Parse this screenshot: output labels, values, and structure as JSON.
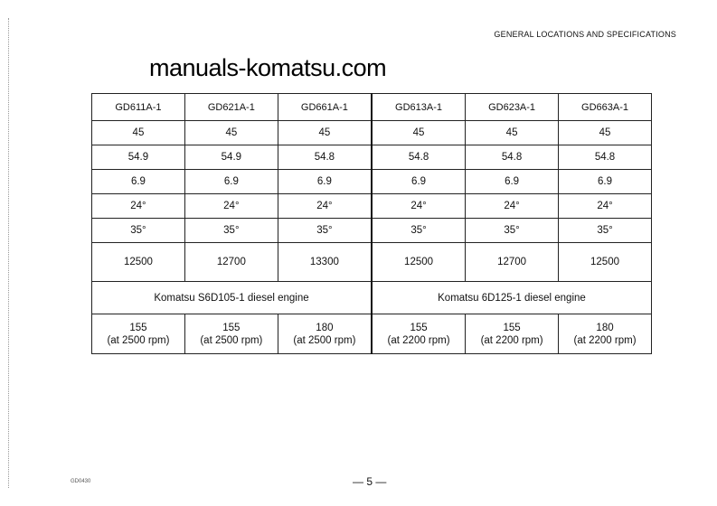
{
  "header": "GENERAL LOCATIONS AND SPECIFICATIONS",
  "watermark": "manuals-komatsu.com",
  "table": {
    "models": [
      "GD611A-1",
      "GD621A-1",
      "GD661A-1",
      "GD613A-1",
      "GD623A-1",
      "GD663A-1"
    ],
    "rows": [
      [
        "45",
        "45",
        "45",
        "45",
        "45",
        "45"
      ],
      [
        "54.9",
        "54.9",
        "54.8",
        "54.8",
        "54.8",
        "54.8"
      ],
      [
        "6.9",
        "6.9",
        "6.9",
        "6.9",
        "6.9",
        "6.9"
      ],
      [
        "24°",
        "24°",
        "24°",
        "24°",
        "24°",
        "24°"
      ],
      [
        "35°",
        "35°",
        "35°",
        "35°",
        "35°",
        "35°"
      ],
      [
        "12500",
        "12700",
        "13300",
        "12500",
        "12700",
        "12500"
      ]
    ],
    "engines": [
      "Komatsu S6D105-1 diesel engine",
      "Komatsu 6D125-1 diesel engine"
    ],
    "power": [
      {
        "value": "155",
        "rpm": "(at 2500 rpm)"
      },
      {
        "value": "155",
        "rpm": "(at 2500 rpm)"
      },
      {
        "value": "180",
        "rpm": "(at 2500 rpm)"
      },
      {
        "value": "155",
        "rpm": "(at 2200 rpm)"
      },
      {
        "value": "155",
        "rpm": "(at 2200 rpm)"
      },
      {
        "value": "180",
        "rpm": "(at 2200 rpm)"
      }
    ]
  },
  "footer": {
    "code": "GD0430",
    "page": "— 5 —"
  }
}
